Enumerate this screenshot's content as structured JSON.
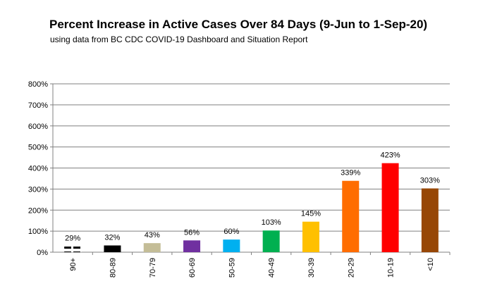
{
  "chart_data": {
    "type": "bar",
    "title": "Percent Increase in Active Cases Over 84 Days (9-Jun to 1-Sep-20)",
    "subtitle": "using data from BC CDC COVID-19 Dashboard and Situation Report",
    "xlabel": "",
    "ylabel": "",
    "ylim": [
      0,
      800
    ],
    "yticks": [
      "0%",
      "100%",
      "200%",
      "300%",
      "400%",
      "500%",
      "600%",
      "700%",
      "800%"
    ],
    "grid": true,
    "categories": [
      "90+",
      "80-89",
      "70-79",
      "60-69",
      "50-59",
      "40-49",
      "30-39",
      "20-29",
      "10-19",
      "<10"
    ],
    "values": [
      29,
      32,
      43,
      56,
      60,
      103,
      145,
      339,
      423,
      303
    ],
    "data_labels": [
      "29%",
      "32%",
      "43%",
      "56%",
      "60%",
      "103%",
      "145%",
      "339%",
      "423%",
      "303%"
    ],
    "colors": [
      "#000000",
      "#000000",
      "#c4bd97",
      "#7030a0",
      "#00b0f0",
      "#00b050",
      "#ffc000",
      "#ff6d00",
      "#ff0000",
      "#974706"
    ],
    "patterns": [
      "dashed",
      "solid",
      "solid",
      "solid",
      "solid",
      "solid",
      "solid",
      "solid",
      "solid",
      "solid"
    ]
  }
}
